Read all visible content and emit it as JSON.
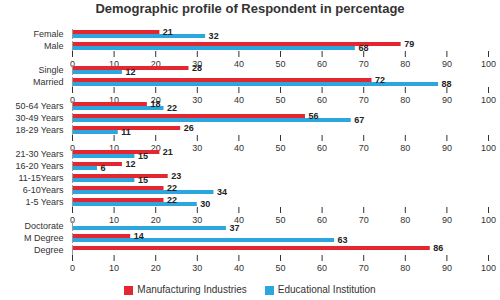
{
  "chart_data": {
    "type": "bar",
    "orientation": "horizontal",
    "title": "Demographic profile of Respondent in percentage",
    "categories": [
      "Female",
      "Male",
      null,
      "Single",
      "Married",
      null,
      "50-64 Years",
      "30-49 Years",
      "18-29 Years",
      null,
      "21-30 Years",
      "16-20 Years",
      "11-15Years",
      "6-10Years",
      "1-5 Years",
      null,
      "Doctorate",
      "M Degree",
      "Degree"
    ],
    "series": [
      {
        "name": "Manufacturing Industries",
        "color": "#e3262f",
        "values": [
          21,
          79,
          null,
          28,
          72,
          null,
          18,
          56,
          26,
          null,
          21,
          12,
          23,
          22,
          22,
          null,
          null,
          14,
          86
        ]
      },
      {
        "name": "Educational Institution",
        "color": "#2ba6de",
        "values": [
          32,
          68,
          null,
          12,
          88,
          null,
          22,
          67,
          11,
          null,
          15,
          6,
          15,
          34,
          30,
          null,
          37,
          63,
          null
        ]
      }
    ],
    "xlim": [
      0,
      100
    ],
    "xticks": [
      0,
      10,
      20,
      30,
      40,
      50,
      60,
      70,
      80,
      90,
      100
    ],
    "grid": false,
    "data_labels": true,
    "legend": "bottom"
  }
}
